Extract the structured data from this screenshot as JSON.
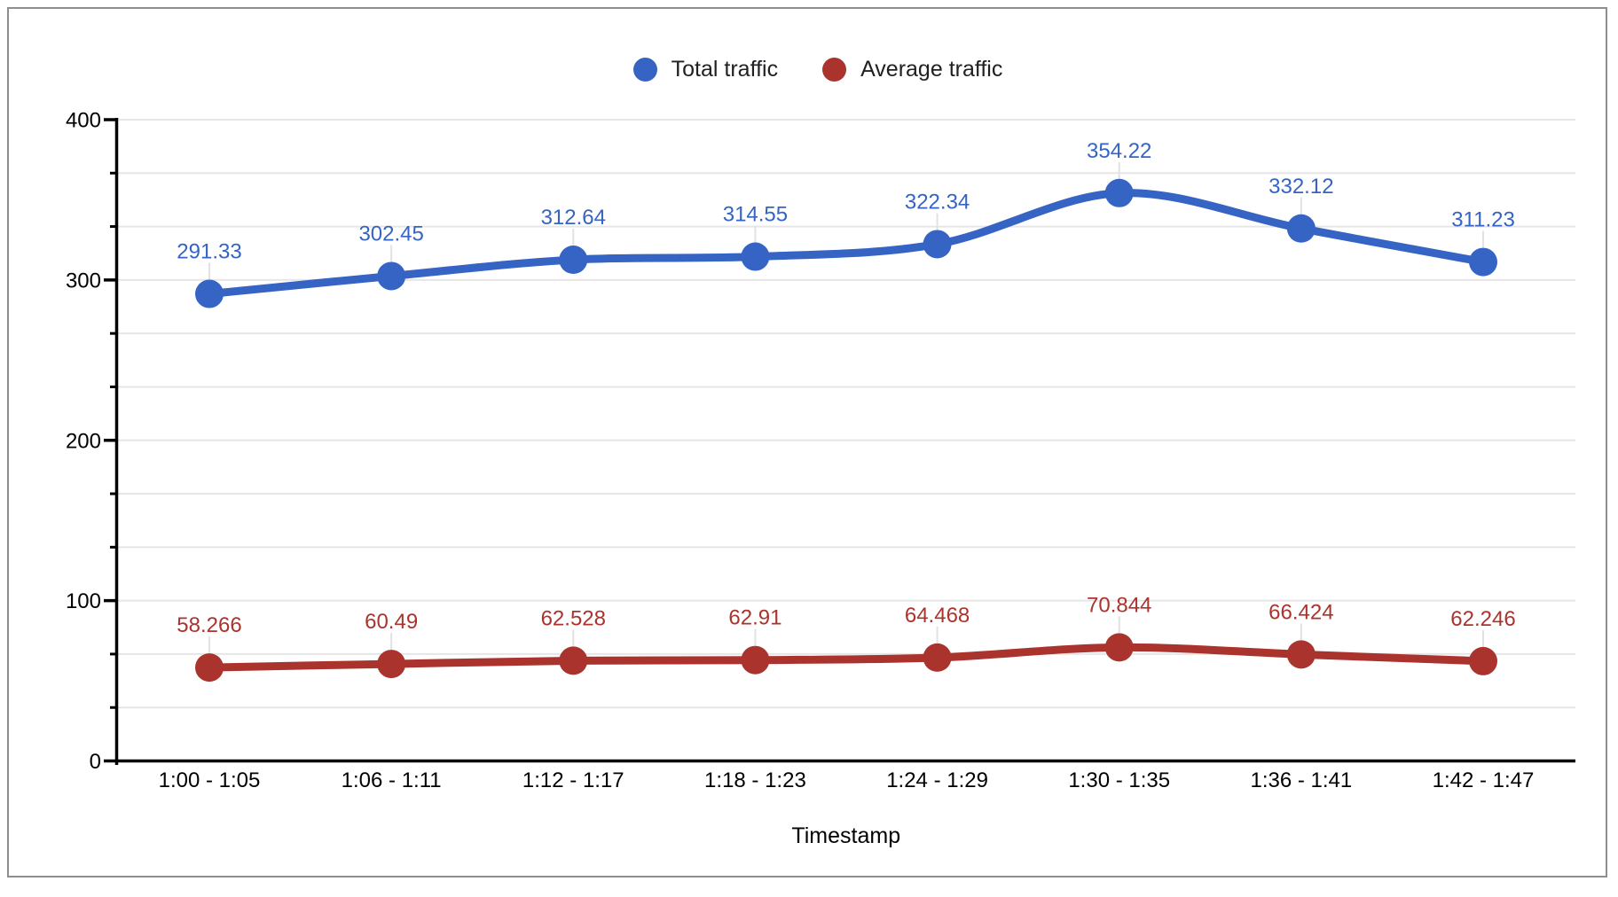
{
  "chart_data": {
    "type": "line",
    "title": "",
    "xlabel": "Timestamp",
    "ylabel": "",
    "ylim": [
      0,
      400
    ],
    "y_major_ticks": [
      0,
      100,
      200,
      300,
      400
    ],
    "y_minor_divisions_per_major": 3,
    "grid": true,
    "smooth": true,
    "legend_position": "top-center",
    "point_labels_visible": true,
    "categories": [
      "1:00 - 1:05",
      "1:06 - 1:11",
      "1:12 - 1:17",
      "1:18 - 1:23",
      "1:24 - 1:29",
      "1:30 - 1:35",
      "1:36 - 1:41",
      "1:42 - 1:47"
    ],
    "series": [
      {
        "name": "Total traffic",
        "color": "#3564C4",
        "values": [
          291.33,
          302.45,
          312.64,
          314.55,
          322.34,
          354.22,
          332.12,
          311.23
        ],
        "point_labels": [
          "291.33",
          "302.45",
          "312.64",
          "314.55",
          "322.34",
          "354.22",
          "332.12",
          "311.23"
        ]
      },
      {
        "name": "Average traffic",
        "color": "#AA342D",
        "values": [
          58.266,
          60.49,
          62.528,
          62.91,
          64.468,
          70.844,
          66.424,
          62.246
        ],
        "point_labels": [
          "58.266",
          "60.49",
          "62.528",
          "62.91",
          "64.468",
          "70.844",
          "66.424",
          "62.246"
        ]
      }
    ]
  },
  "colors": {
    "axis": "#000000",
    "axis_text": "#000000",
    "gridline": "#E6E6E6",
    "label_callout": "#E2E2E2",
    "frame_border": "#8E8E8E",
    "background": "#FFFFFF"
  }
}
